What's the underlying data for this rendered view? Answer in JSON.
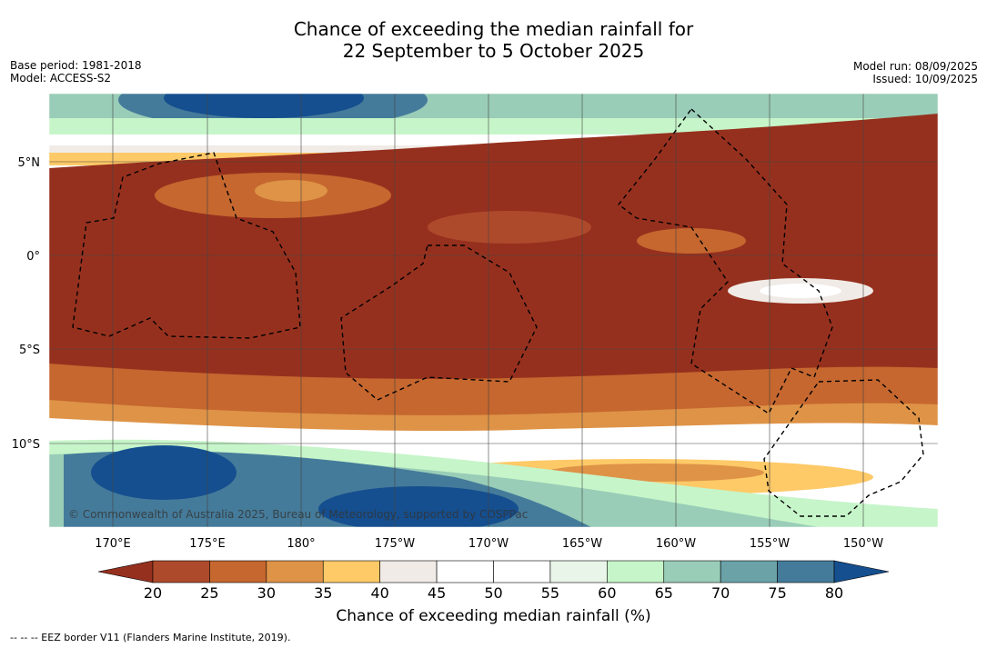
{
  "title": {
    "line1": "Chance of exceeding the median rainfall for",
    "line2": "22 September to 5 October 2025"
  },
  "meta": {
    "base_period": "Base period: 1981-2018",
    "model": "Model: ACCESS-S2",
    "model_run": "Model run: 08/09/2025",
    "issued": "Issued: 10/09/2025"
  },
  "map": {
    "lon_labels": [
      "170°E",
      "175°E",
      "180°",
      "175°W",
      "170°W",
      "165°W",
      "160°W",
      "155°W",
      "150°W"
    ],
    "lat_labels": [
      "5°N",
      "0°",
      "5°S",
      "10°S"
    ],
    "copyright": "© Commonwealth of Australia 2025, Bureau of Meteorology, supported by COSPPac"
  },
  "colorbar": {
    "ticks": [
      "20",
      "25",
      "30",
      "35",
      "40",
      "45",
      "50",
      "55",
      "60",
      "65",
      "70",
      "75",
      "80"
    ],
    "label": "Chance of exceeding median rainfall (%)",
    "colors": [
      "#ae4a2c",
      "#c5672f",
      "#de9347",
      "#fec967",
      "#f0ebe6",
      "#ffffff",
      "#ffffff",
      "#e8f5e8",
      "#c6f5c9",
      "#99cdb7",
      "#6aa2a8",
      "#457b9a"
    ],
    "under_color": "#96301e",
    "over_color": "#154f8f"
  },
  "footnote": "-- -- -- EEZ border V11 (Flanders Marine Institute, 2019)."
}
